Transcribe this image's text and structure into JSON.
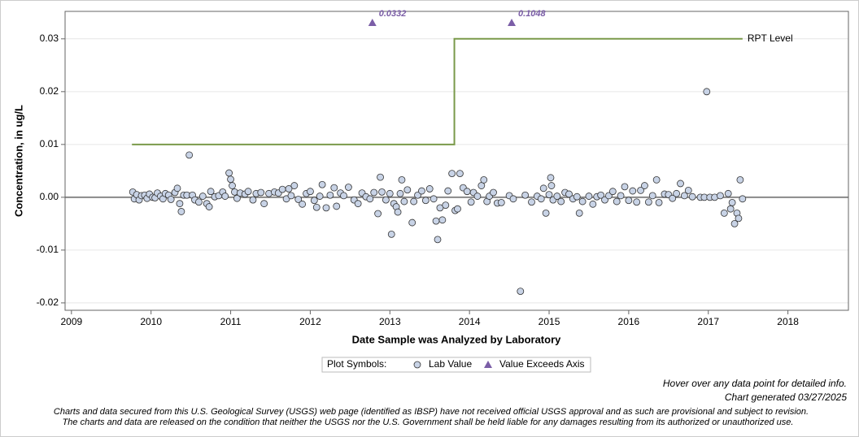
{
  "chart_data": {
    "type": "scatter",
    "xlabel": "Date Sample was Analyzed by Laboratory",
    "ylabel": "Concentration, in ug/L",
    "xlim": [
      2008.92,
      2018.76
    ],
    "xticks": [
      2009,
      2010,
      2011,
      2012,
      2013,
      2014,
      2015,
      2016,
      2017,
      2018
    ],
    "ylim": [
      -0.0214,
      0.0352
    ],
    "yticks": [
      -0.02,
      -0.01,
      {
        "value": 0,
        "label": "0.00"
      },
      0.01,
      0.02,
      0.03
    ],
    "grid": true,
    "legend_title": "Plot Symbols:",
    "series": [
      {
        "name": "Lab Value",
        "color": "#c8d3e6",
        "x": [
          2009.77,
          2009.79,
          2009.82,
          2009.85,
          2009.88,
          2009.92,
          2009.95,
          2009.98,
          2010.02,
          2010.05,
          2010.08,
          2010.12,
          2010.15,
          2010.18,
          2010.22,
          2010.25,
          2010.3,
          2010.33,
          2010.36,
          2010.38,
          2010.41,
          2010.45,
          2010.48,
          2010.52,
          2010.55,
          2010.6,
          2010.65,
          2010.7,
          2010.73,
          2010.75,
          2010.8,
          2010.85,
          2010.9,
          2010.93,
          2010.98,
          2011.0,
          2011.02,
          2011.05,
          2011.08,
          2011.12,
          2011.18,
          2011.22,
          2011.28,
          2011.32,
          2011.38,
          2011.42,
          2011.48,
          2011.55,
          2011.6,
          2011.65,
          2011.7,
          2011.73,
          2011.76,
          2011.8,
          2011.85,
          2011.9,
          2011.95,
          2012.0,
          2012.05,
          2012.08,
          2012.12,
          2012.15,
          2012.2,
          2012.25,
          2012.3,
          2012.33,
          2012.38,
          2012.42,
          2012.48,
          2012.55,
          2012.6,
          2012.65,
          2012.7,
          2012.75,
          2012.8,
          2012.85,
          2012.88,
          2012.9,
          2012.95,
          2013.0,
          2013.02,
          2013.05,
          2013.08,
          2013.1,
          2013.13,
          2013.15,
          2013.18,
          2013.22,
          2013.28,
          2013.3,
          2013.35,
          2013.4,
          2013.45,
          2013.5,
          2013.55,
          2013.58,
          2013.6,
          2013.63,
          2013.66,
          2013.7,
          2013.73,
          2013.78,
          2013.82,
          2013.85,
          2013.88,
          2013.92,
          2013.97,
          2014.02,
          2014.05,
          2014.1,
          2014.15,
          2014.18,
          2014.22,
          2014.25,
          2014.3,
          2014.35,
          2014.4,
          2014.5,
          2014.55,
          2014.64,
          2014.7,
          2014.78,
          2014.85,
          2014.9,
          2014.93,
          2014.96,
          2015.0,
          2015.02,
          2015.03,
          2015.05,
          2015.1,
          2015.15,
          2015.2,
          2015.25,
          2015.3,
          2015.35,
          2015.38,
          2015.42,
          2015.5,
          2015.55,
          2015.6,
          2015.65,
          2015.7,
          2015.75,
          2015.8,
          2015.85,
          2015.9,
          2015.95,
          2016.0,
          2016.05,
          2016.1,
          2016.15,
          2016.2,
          2016.25,
          2016.3,
          2016.35,
          2016.38,
          2016.45,
          2016.5,
          2016.55,
          2016.6,
          2016.65,
          2016.7,
          2016.75,
          2016.8,
          2016.9,
          2016.95,
          2016.98,
          2017.02,
          2017.08,
          2017.15,
          2017.2,
          2017.25,
          2017.28,
          2017.3,
          2017.33,
          2017.36,
          2017.38,
          2017.4,
          2017.43
        ],
        "values": [
          0.001,
          -0.0003,
          0.0005,
          -0.0005,
          0.0003,
          0.0004,
          -0.0002,
          0.0006,
          0,
          -0.0001,
          0.0008,
          0.0002,
          -0.0003,
          0.0007,
          0.0004,
          -0.0004,
          0.0009,
          0.0017,
          -0.0012,
          -0.0027,
          0.0004,
          0.0004,
          0.008,
          0.0004,
          -0.0005,
          -0.0009,
          0.0002,
          -0.0012,
          -0.0018,
          0.0011,
          0.0001,
          0.0003,
          0.001,
          0.0002,
          0.0046,
          0.0034,
          0.0022,
          0.001,
          -0.0002,
          0.0008,
          0.0006,
          0.0011,
          -0.0005,
          0.0007,
          0.0009,
          -0.0012,
          0.0007,
          0.001,
          0.0008,
          0.0015,
          -0.0003,
          0.0016,
          0.0003,
          0.0022,
          -0.0004,
          -0.0013,
          0.0007,
          0.0011,
          -0.0006,
          -0.0019,
          0.0002,
          0.0024,
          -0.002,
          0.0004,
          0.0018,
          -0.0017,
          0.0008,
          0.0003,
          0.0019,
          -0.0005,
          -0.0012,
          0.0008,
          0.0001,
          -0.0003,
          0.0009,
          -0.0031,
          0.0038,
          0.001,
          -0.0005,
          0.0007,
          -0.007,
          -0.0012,
          -0.0018,
          -0.0028,
          0.0007,
          0.0033,
          -0.0008,
          0.0014,
          -0.0048,
          -0.0008,
          0.0004,
          0.0012,
          -0.0006,
          0.0016,
          -0.0003,
          -0.0045,
          -0.008,
          -0.002,
          -0.0043,
          -0.0015,
          0.0012,
          0.0045,
          -0.0025,
          -0.0022,
          0.0045,
          0.0018,
          0.0011,
          -0.0009,
          0.0009,
          0.0002,
          0.0022,
          0.0033,
          -0.0008,
          0.0002,
          0.0009,
          -0.0011,
          -0.001,
          0.0003,
          -0.0003,
          -0.0178,
          0.0004,
          -0.0009,
          0.0002,
          -0.0003,
          0.0017,
          -0.003,
          0.0005,
          0.0037,
          0.0022,
          -0.0005,
          0.0002,
          -0.0008,
          0.0009,
          0.0006,
          -0.0003,
          0.0001,
          -0.003,
          -0.0008,
          0.0002,
          -0.0013,
          0.0001,
          0.0004,
          -0.0005,
          0.0003,
          0.0011,
          -0.0008,
          0.0003,
          0.002,
          -0.0006,
          0.0012,
          -0.0009,
          0.0013,
          0.0022,
          -0.0009,
          0.0003,
          0.0033,
          -0.001,
          0.0006,
          0.0005,
          -0.0002,
          0.0007,
          0.0026,
          0.0003,
          0.0013,
          0.0001,
          0,
          0,
          0.02,
          0,
          0,
          0.0003,
          -0.003,
          0.0007,
          -0.0022,
          -0.001,
          -0.005,
          -0.003,
          -0.004,
          0.0033,
          -0.0003
        ]
      },
      {
        "name": "Value Exceeds Axis",
        "color": "#7b5ea7",
        "x": [
          2012.78,
          2014.53
        ],
        "values": [
          0.0332,
          0.1048
        ],
        "value_labels": [
          "0.0332",
          "0.1048"
        ]
      }
    ],
    "reference_line": {
      "name": "RPT Level",
      "color": "#7a9a4a",
      "x": [
        2009.76,
        2013.81,
        2013.81,
        2017.43
      ],
      "values": [
        0.01,
        0.01,
        0.03,
        0.03
      ]
    },
    "annotations": [
      "Hover over any data point for detailed info.",
      "Chart generated 03/27/2025"
    ],
    "disclaimer": [
      "Charts and data secured from this U.S. Geological Survey (USGS) web page (identified as IBSP) have not received official USGS approval and as such are provisional and subject to revision.",
      "The charts and data are released on the condition that neither the USGS nor the U.S. Government shall be held liable for any damages resulting from its authorized or unauthorized use."
    ]
  }
}
